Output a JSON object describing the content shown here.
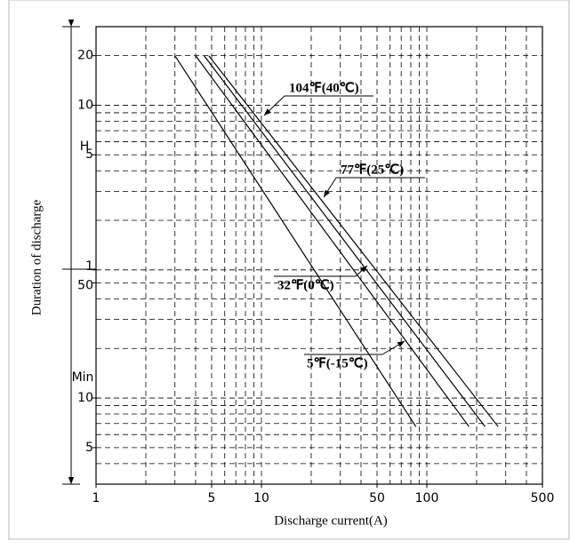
{
  "chart_data": {
    "type": "line",
    "xlabel": "Discharge current(A)",
    "ylabel": "Duration of discharge",
    "y_unit_labels": [
      "H",
      "Min"
    ],
    "log_x": true,
    "log_y": true,
    "grid": true,
    "xlim": [
      1,
      500
    ],
    "ylim": [
      3,
      1800
    ],
    "xticks": [
      1,
      5,
      10,
      50,
      100,
      500
    ],
    "yticks": [
      {
        "value": 1200,
        "label": "20"
      },
      {
        "value": 600,
        "label": "10"
      },
      {
        "value": 300,
        "label": "5"
      },
      {
        "value": 60,
        "label": "1"
      },
      50,
      10,
      5
    ],
    "xgrid": [
      2,
      3,
      4,
      5,
      6,
      7,
      8,
      9,
      10,
      20,
      30,
      40,
      50,
      60,
      70,
      80,
      90,
      100,
      200,
      300,
      400
    ],
    "ygrid": [
      4,
      5,
      6,
      7,
      8,
      9,
      10,
      20,
      30,
      40,
      50,
      60,
      120,
      180,
      240,
      300,
      360,
      420,
      480,
      540,
      600,
      1200
    ],
    "color": "#000000",
    "series": [
      {
        "name": "104℉(40℃)",
        "x": [
          4.8,
          270
        ],
        "values": [
          1200,
          6.7
        ]
      },
      {
        "name": "77℉(25℃)",
        "x": [
          4.5,
          225
        ],
        "values": [
          1200,
          6.7
        ]
      },
      {
        "name": "32℉(0℃)",
        "x": [
          4,
          180
        ],
        "values": [
          1200,
          6.7
        ]
      },
      {
        "name": "5℉(-15℃)",
        "x": [
          3,
          86
        ],
        "values": [
          1200,
          6.7
        ]
      }
    ]
  }
}
